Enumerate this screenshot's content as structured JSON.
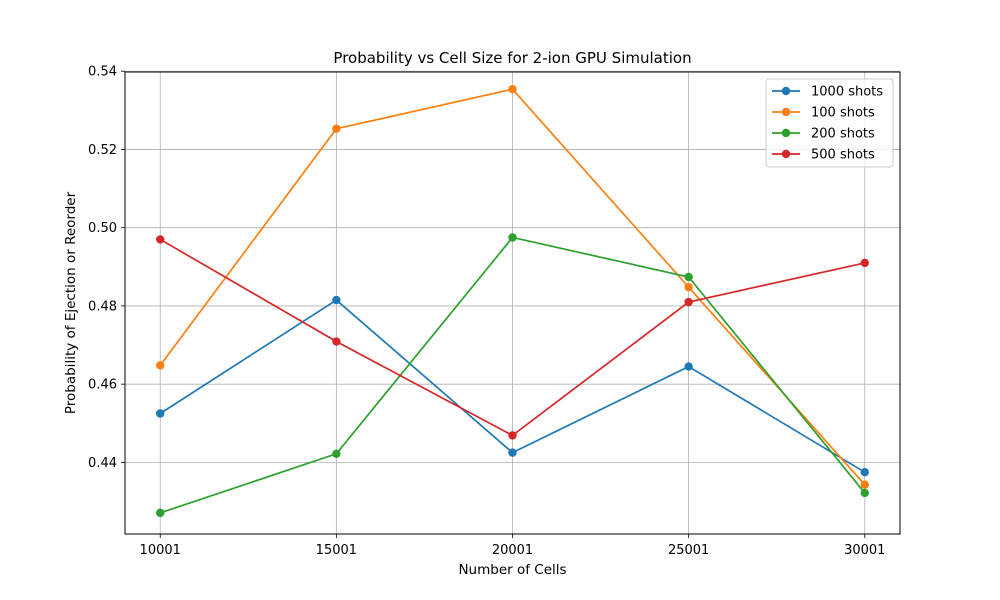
{
  "chart_data": {
    "type": "line",
    "title": "Probability vs Cell Size for 2-ion GPU Simulation",
    "xlabel": "Number of Cells",
    "ylabel": "Probability of Ejection or Reorder",
    "x": [
      10001,
      15001,
      20001,
      25001,
      30001
    ],
    "x_tick_labels": [
      "10001",
      "15001",
      "20001",
      "25001",
      "30001"
    ],
    "y_ticks": [
      0.44,
      0.46,
      0.48,
      0.5,
      0.52,
      0.54
    ],
    "y_tick_labels": [
      "0.44",
      "0.46",
      "0.48",
      "0.50",
      "0.52",
      "0.54"
    ],
    "xlim": [
      9001,
      31001
    ],
    "ylim": [
      0.4217,
      0.5398
    ],
    "grid": true,
    "legend_position": "top-right",
    "series": [
      {
        "name": "1000 shots",
        "color": "#1f77b4",
        "values": [
          0.4525,
          0.4815,
          0.4425,
          0.4645,
          0.4375
        ]
      },
      {
        "name": "100 shots",
        "color": "#ff7f0e",
        "values": [
          0.4648,
          0.5253,
          0.5354,
          0.4848,
          0.4343
        ]
      },
      {
        "name": "200 shots",
        "color": "#2ca02c",
        "values": [
          0.4271,
          0.4422,
          0.4975,
          0.4874,
          0.4322
        ]
      },
      {
        "name": "500 shots",
        "color": "#d62728",
        "values": [
          0.497,
          0.4709,
          0.4469,
          0.481,
          0.491
        ]
      }
    ]
  }
}
